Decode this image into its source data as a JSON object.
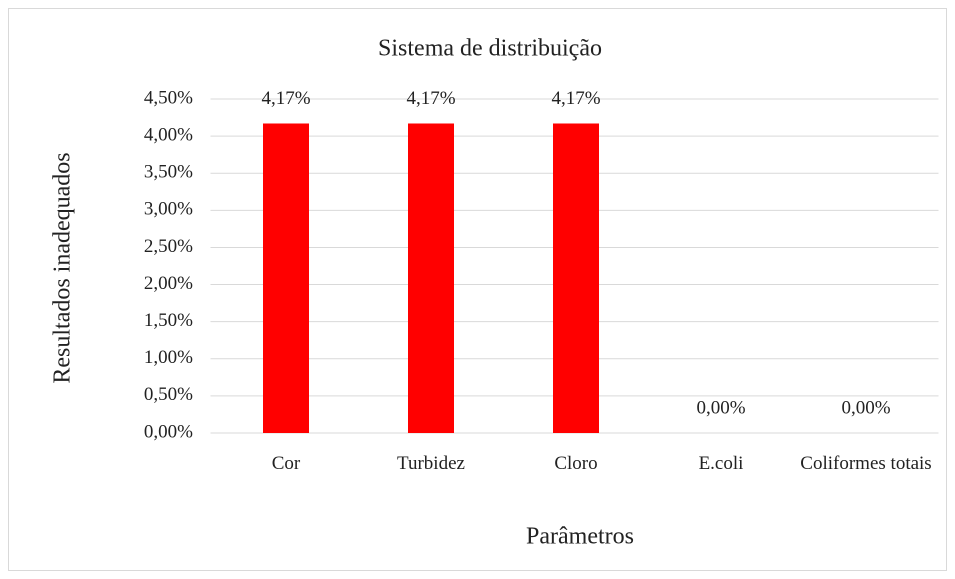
{
  "chart_data": {
    "type": "bar",
    "title": "Sistema de distribuição",
    "x_label": "Parâmetros",
    "y_label": "Resultados inadequados",
    "categories": [
      "Cor",
      "Turbidez",
      "Cloro",
      "E.coli",
      "Coliformes totais"
    ],
    "values": [
      4.17,
      4.17,
      4.17,
      0,
      0
    ],
    "value_labels": [
      "4,17%",
      "4,17%",
      "4,17%",
      "0,00%",
      "0,00%"
    ],
    "color": "#ff0000",
    "ylim": [
      0,
      4.5
    ],
    "yticks": [
      {
        "value": 0,
        "label": "0,00%"
      },
      {
        "value": 0.5,
        "label": "0,50%"
      },
      {
        "value": 1,
        "label": "1,00%"
      },
      {
        "value": 1.5,
        "label": "1,50%"
      },
      {
        "value": 2,
        "label": "2,00%"
      },
      {
        "value": 2.5,
        "label": "2,50%"
      },
      {
        "value": 3,
        "label": "3,00%"
      },
      {
        "value": 3.5,
        "label": "3,50%"
      },
      {
        "value": 4,
        "label": "4,00%"
      },
      {
        "value": 4.5,
        "label": "4,50%"
      }
    ],
    "grid": true
  }
}
